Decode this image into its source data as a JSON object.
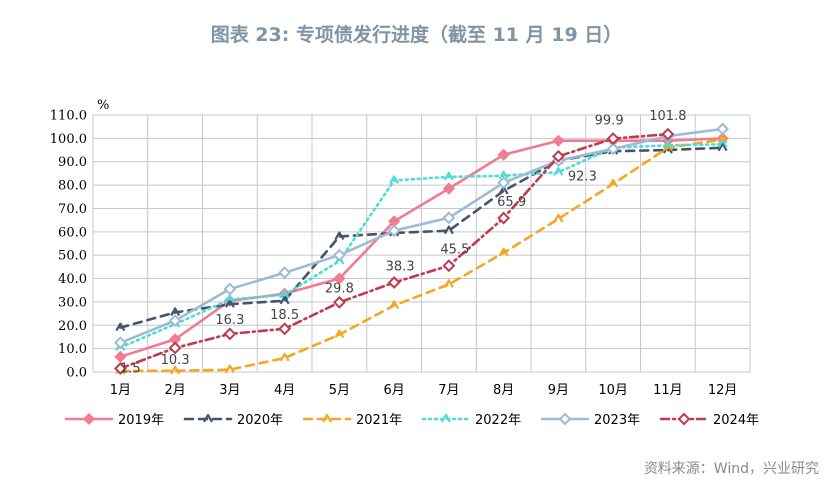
{
  "title": "图表 23: 专项债发行进度（截至 11 月 19 日）",
  "source": "资料来源：Wind，兴业研究",
  "chart_data": {
    "type": "line",
    "title": "图表 23: 专项债发行进度（截至 11 月 19 日）",
    "ylabel": "%",
    "xlabel": "",
    "ylim": [
      0,
      110
    ],
    "yticks": [
      "0.0",
      "10.0",
      "20.0",
      "30.0",
      "40.0",
      "50.0",
      "60.0",
      "70.0",
      "80.0",
      "90.0",
      "100.0",
      "110.0"
    ],
    "categories": [
      "1月",
      "2月",
      "3月",
      "4月",
      "5月",
      "6月",
      "7月",
      "8月",
      "9月",
      "10月",
      "11月",
      "12月"
    ],
    "grid": true,
    "legend_position": "bottom",
    "series": [
      {
        "name": "2019年",
        "color": "#f07b92",
        "dash": "solid",
        "marker": "diamond-filled",
        "values": [
          6.5,
          14,
          30.5,
          33.5,
          40,
          64.5,
          78.5,
          93,
          99,
          99,
          99,
          100
        ]
      },
      {
        "name": "2020年",
        "color": "#44546a",
        "dash": "dash",
        "marker": "arrow",
        "values": [
          19,
          25.5,
          29,
          30.5,
          58,
          59.5,
          60.5,
          77.5,
          90.5,
          94.5,
          95,
          96
        ]
      },
      {
        "name": "2021年",
        "color": "#f5a623",
        "dash": "dash",
        "marker": "arrow",
        "values": [
          0.5,
          0.5,
          1,
          6,
          16,
          28.5,
          37.5,
          51,
          65.5,
          80.5,
          96,
          99.5
        ]
      },
      {
        "name": "2022年",
        "color": "#4fdcd4",
        "dash": "dot",
        "marker": "arrow",
        "values": [
          10.5,
          20.5,
          31,
          33,
          47.5,
          82,
          83.5,
          84,
          85.5,
          96,
          97,
          97.5
        ]
      },
      {
        "name": "2023年",
        "color": "#9dbbd6",
        "dash": "solid",
        "marker": "diamond-open",
        "values": [
          12.5,
          22,
          35.5,
          42.5,
          50,
          60.5,
          66,
          81,
          90.5,
          95.5,
          101,
          104
        ]
      },
      {
        "name": "2024年",
        "color": "#c0394f",
        "dash": "dashdot",
        "marker": "diamond-open",
        "values": [
          1.5,
          10.3,
          16.3,
          18.5,
          29.8,
          38.3,
          45.5,
          65.9,
          92.3,
          99.9,
          101.8,
          null
        ]
      }
    ],
    "data_labels": [
      {
        "series": "2024年",
        "index": 0,
        "text": "1.5"
      },
      {
        "series": "2024年",
        "index": 1,
        "text": "10.3"
      },
      {
        "series": "2024年",
        "index": 2,
        "text": "16.3"
      },
      {
        "series": "2024年",
        "index": 3,
        "text": "18.5"
      },
      {
        "series": "2024年",
        "index": 4,
        "text": "29.8"
      },
      {
        "series": "2024年",
        "index": 5,
        "text": "38.3"
      },
      {
        "series": "2024年",
        "index": 6,
        "text": "45.5"
      },
      {
        "series": "2024年",
        "index": 7,
        "text": "65.9"
      },
      {
        "series": "2024年",
        "index": 8,
        "text": "92.3"
      },
      {
        "series": "2024年",
        "index": 9,
        "text": "99.9"
      },
      {
        "series": "2024年",
        "index": 10,
        "text": "101.8"
      }
    ]
  }
}
